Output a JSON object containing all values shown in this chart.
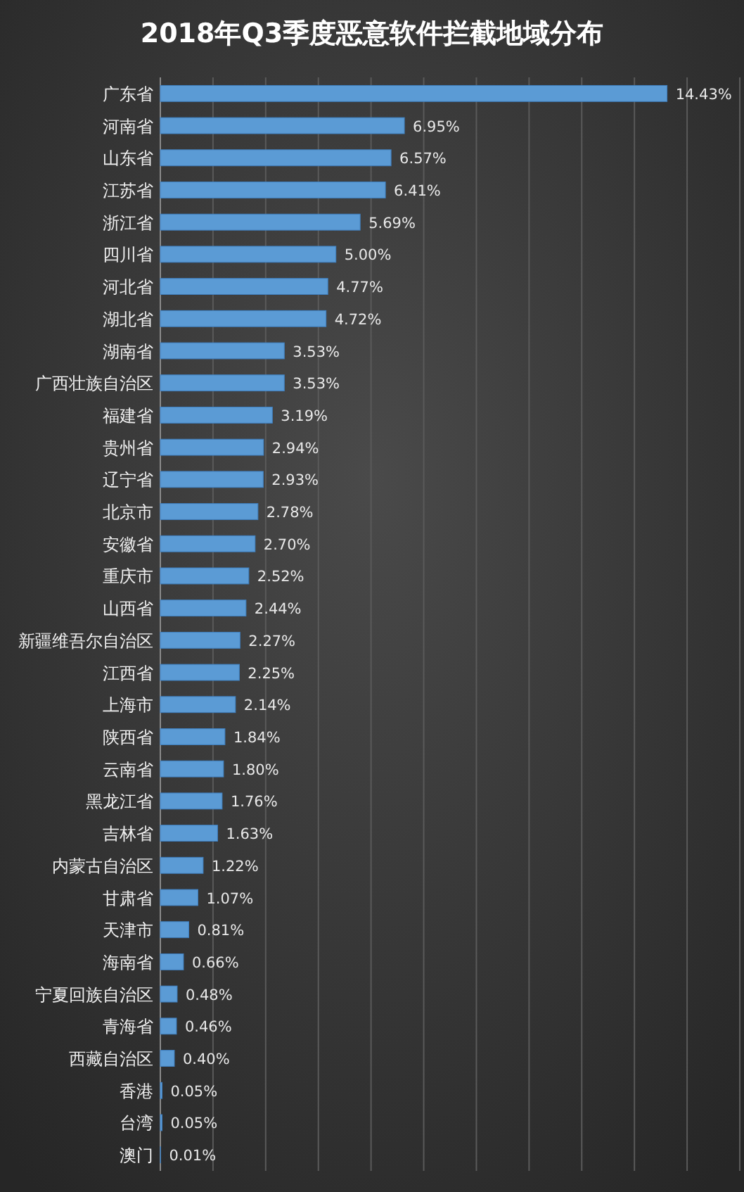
{
  "chart_data": {
    "type": "bar",
    "orientation": "horizontal",
    "title": "2018年Q3季度恶意软件拦截地域分布",
    "categories": [
      "广东省",
      "河南省",
      "山东省",
      "江苏省",
      "浙江省",
      "四川省",
      "河北省",
      "湖北省",
      "湖南省",
      "广西壮族自治区",
      "福建省",
      "贵州省",
      "辽宁省",
      "北京市",
      "安徽省",
      "重庆市",
      "山西省",
      "新疆维吾尔自治区",
      "江西省",
      "上海市",
      "陕西省",
      "云南省",
      "黑龙江省",
      "吉林省",
      "内蒙古自治区",
      "甘肃省",
      "天津市",
      "海南省",
      "宁夏回族自治区",
      "青海省",
      "西藏自治区",
      "香港",
      "台湾",
      "澳门"
    ],
    "values": [
      14.43,
      6.95,
      6.57,
      6.41,
      5.69,
      5.0,
      4.77,
      4.72,
      3.53,
      3.53,
      3.19,
      2.94,
      2.93,
      2.78,
      2.7,
      2.52,
      2.44,
      2.27,
      2.25,
      2.14,
      1.84,
      1.8,
      1.76,
      1.63,
      1.22,
      1.07,
      0.81,
      0.66,
      0.48,
      0.46,
      0.4,
      0.05,
      0.05,
      0.01
    ],
    "value_labels": [
      "14.43%",
      "6.95%",
      "6.57%",
      "6.41%",
      "5.69%",
      "5.00%",
      "4.77%",
      "4.72%",
      "3.53%",
      "3.53%",
      "3.19%",
      "2.94%",
      "2.93%",
      "2.78%",
      "2.70%",
      "2.52%",
      "2.44%",
      "2.27%",
      "2.25%",
      "2.14%",
      "1.84%",
      "1.80%",
      "1.76%",
      "1.63%",
      "1.22%",
      "1.07%",
      "0.81%",
      "0.66%",
      "0.48%",
      "0.46%",
      "0.40%",
      "0.05%",
      "0.05%",
      "0.01%"
    ],
    "color": "#5b9bd5",
    "xlim": [
      0,
      16.5
    ],
    "xticks": [
      {
        "value": 0,
        "label": null
      },
      {
        "value": 1.5,
        "label": null
      },
      {
        "value": 3,
        "label": null
      },
      {
        "value": 4.5,
        "label": null
      },
      {
        "value": 6,
        "label": null
      },
      {
        "value": 7.5,
        "label": null
      },
      {
        "value": 9,
        "label": null
      },
      {
        "value": 10.5,
        "label": null
      },
      {
        "value": 12,
        "label": null
      },
      {
        "value": 13.5,
        "label": null
      },
      {
        "value": 15,
        "label": null
      },
      {
        "value": 16.5,
        "label": null
      }
    ],
    "grid": "x",
    "tick_labels": "y"
  }
}
